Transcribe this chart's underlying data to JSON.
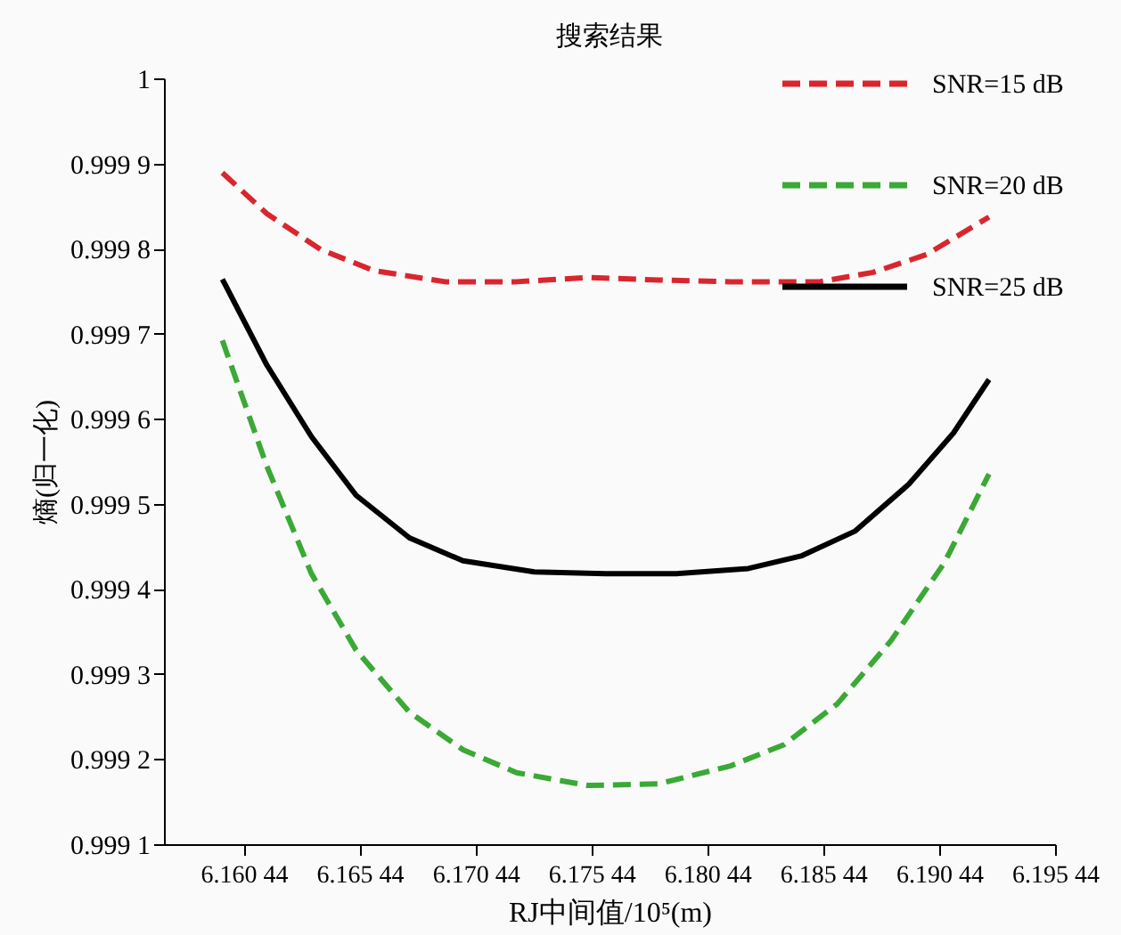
{
  "chart_data": {
    "type": "line",
    "title": "搜索结果",
    "xlabel": "RJ中间值/10⁵(m)",
    "ylabel": "熵(归一化)",
    "xlim": [
      6.157,
      6.19544
    ],
    "xticks": [
      6.16044,
      6.16544,
      6.17044,
      6.17544,
      6.18044,
      6.18544,
      6.19044,
      6.19544
    ],
    "ylim": [
      0.9991,
      1
    ],
    "yticks": [
      0.9991,
      0.9992,
      0.9993,
      0.9994,
      0.9995,
      0.9996,
      0.9997,
      0.9998,
      0.9999,
      1
    ],
    "grid": false,
    "legend": "top right",
    "marker": "none",
    "series": [
      {
        "name": "SNR=15 dB",
        "color": "#d9262e",
        "line_style": "dashed",
        "x": [
          6.15952,
          6.16144,
          6.16375,
          6.16606,
          6.16913,
          6.17221,
          6.17529,
          6.17836,
          6.18144,
          6.18529,
          6.18759,
          6.1899,
          6.19259
        ],
        "values": [
          0.999889,
          0.999841,
          0.999799,
          0.999774,
          0.999761,
          0.999761,
          0.999766,
          0.999763,
          0.999761,
          0.999761,
          0.999772,
          0.999793,
          0.999837
        ]
      },
      {
        "name": "SNR=20 dB",
        "color": "#3aa935",
        "line_style": "dashed",
        "x": [
          6.15952,
          6.16144,
          6.16336,
          6.16529,
          6.16759,
          6.1699,
          6.17221,
          6.17529,
          6.17836,
          6.18144,
          6.18375,
          6.18605,
          6.18836,
          6.19067,
          6.19259
        ],
        "values": [
          0.999692,
          0.999544,
          0.999418,
          0.999328,
          0.999255,
          0.999211,
          0.999184,
          0.999169,
          0.999171,
          0.999192,
          0.999217,
          0.999265,
          0.999339,
          0.999431,
          0.999535
        ]
      },
      {
        "name": "SNR=25 dB",
        "color": "#000000",
        "line_style": "solid",
        "x": [
          6.15952,
          6.16144,
          6.16336,
          6.16529,
          6.16759,
          6.1699,
          6.17298,
          6.17606,
          6.17913,
          6.18221,
          6.18452,
          6.18682,
          6.18913,
          6.19105,
          6.19259
        ],
        "values": [
          0.999764,
          0.999663,
          0.999579,
          0.99951,
          0.99946,
          0.999433,
          0.99942,
          0.999418,
          0.999418,
          0.999424,
          0.999439,
          0.999468,
          0.999523,
          0.999583,
          0.999646
        ]
      }
    ]
  }
}
